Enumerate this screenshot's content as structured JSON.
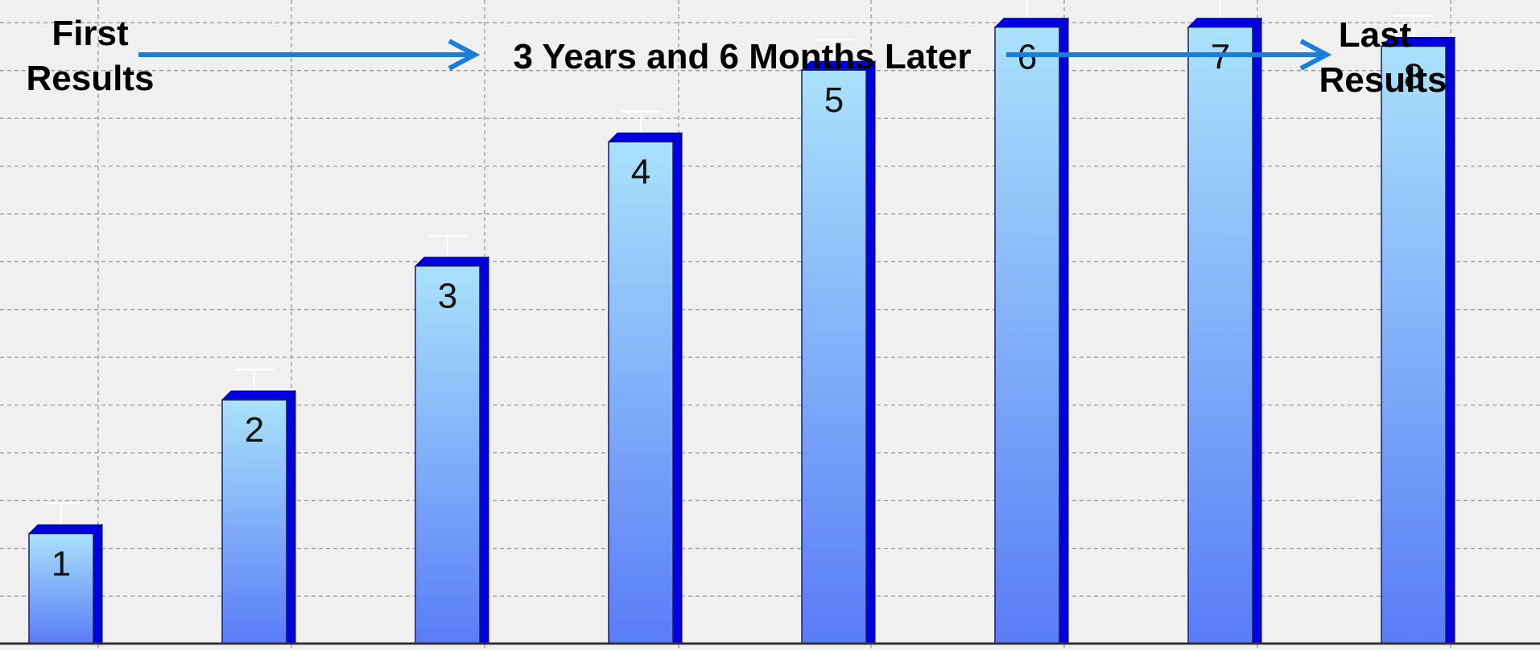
{
  "chart_data": {
    "type": "bar",
    "categories": [
      "1",
      "2",
      "3",
      "4",
      "5",
      "6",
      "7",
      "8"
    ],
    "values": [
      2.3,
      5.1,
      7.9,
      10.5,
      12.0,
      12.9,
      12.9,
      12.5
    ],
    "data_labels": [
      "1",
      "2",
      "3",
      "4",
      "5",
      "6",
      "7",
      "8"
    ],
    "error_bars": [
      0.45,
      0.45,
      0.45,
      0.45,
      0.45,
      0.45,
      0.45,
      0.45
    ],
    "ylim": [
      0,
      15
    ],
    "grid": true,
    "title": "",
    "xlabel": "",
    "ylabel": "",
    "annotations": {
      "first": [
        "First",
        "Results"
      ],
      "middle": "3 Years and 6 Months Later",
      "last": [
        "Last",
        "Results"
      ]
    },
    "colors": {
      "background": "#f0f0f0",
      "grid": "#9a9a9a",
      "bar_top": "#a9e2fb",
      "bar_bottom": "#5a7cf7",
      "bar_depth": "#0000e0",
      "arrow": "#1a7fd9",
      "axis": "#333333"
    }
  }
}
